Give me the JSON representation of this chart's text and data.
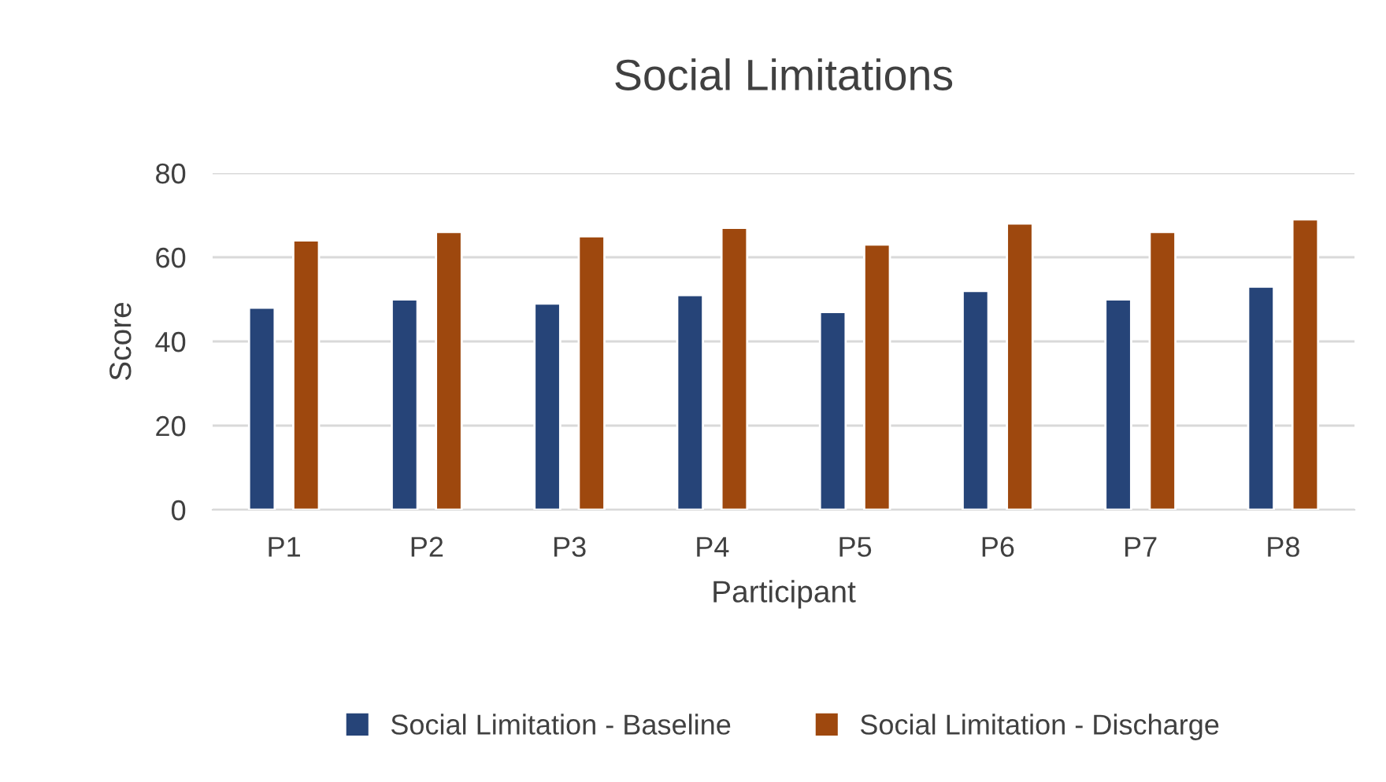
{
  "chart_data": {
    "type": "bar",
    "title": "Social Limitations",
    "xlabel": "Participant",
    "ylabel": "Score",
    "categories": [
      "P1",
      "P2",
      "P3",
      "P4",
      "P5",
      "P6",
      "P7",
      "P8"
    ],
    "series": [
      {
        "name": "Social Limitation - Baseline",
        "color": "#264478",
        "values": [
          48,
          50,
          49,
          51,
          47,
          52,
          50,
          53
        ]
      },
      {
        "name": "Social Limitation - Discharge",
        "color": "#9e480e",
        "values": [
          64,
          66,
          65,
          67,
          63,
          68,
          66,
          69
        ]
      }
    ],
    "ylim": [
      0,
      80
    ],
    "yticks": [
      0,
      20,
      40,
      60,
      80
    ],
    "grid": "y",
    "legend": "bottom"
  }
}
